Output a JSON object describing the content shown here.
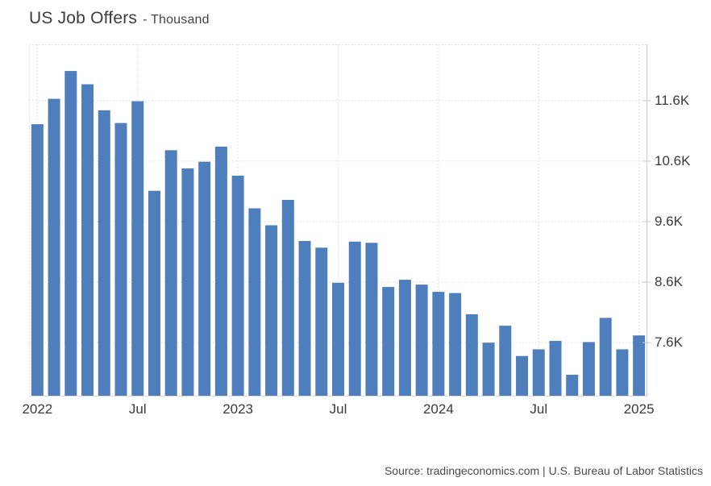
{
  "title": {
    "main": "US Job Offers",
    "unit": "- Thousand"
  },
  "source": "Source: tradingeconomics.com | U.S. Bureau of Labor Statistics",
  "colors": {
    "bar": "#4e7fbc",
    "grid": "#d9d9d9",
    "axis": "#c9c9c9",
    "baseline": "#dddddd",
    "tick_text": "#3a3a3a",
    "title_text": "#3c3c3c",
    "source_text": "#4a4a4a",
    "background": "#ffffff"
  },
  "chart_data": {
    "type": "bar",
    "title": "US Job Offers",
    "subtitle": "Thousand",
    "unit": "Thousand",
    "x": [
      "Jan 2022",
      "Feb 2022",
      "Mar 2022",
      "Apr 2022",
      "May 2022",
      "Jun 2022",
      "Jul 2022",
      "Aug 2022",
      "Sep 2022",
      "Oct 2022",
      "Nov 2022",
      "Dec 2022",
      "Jan 2023",
      "Feb 2023",
      "Mar 2023",
      "Apr 2023",
      "May 2023",
      "Jun 2023",
      "Jul 2023",
      "Aug 2023",
      "Sep 2023",
      "Oct 2023",
      "Nov 2023",
      "Dec 2023",
      "Jan 2024",
      "Feb 2024",
      "Mar 2024",
      "Apr 2024",
      "May 2024",
      "Jun 2024",
      "Jul 2024",
      "Aug 2024",
      "Sep 2024",
      "Oct 2024",
      "Nov 2024",
      "Dec 2024",
      "Jan 2025"
    ],
    "values": [
      11.21,
      11.63,
      12.09,
      11.87,
      11.44,
      11.23,
      11.59,
      10.11,
      10.78,
      10.48,
      10.59,
      10.84,
      10.36,
      9.82,
      9.54,
      9.96,
      9.28,
      9.17,
      8.59,
      9.27,
      9.25,
      8.52,
      8.64,
      8.56,
      8.44,
      8.42,
      8.07,
      7.6,
      7.88,
      7.38,
      7.49,
      7.63,
      7.07,
      7.61,
      8.01,
      7.49,
      7.72
    ],
    "values_unit": "K",
    "ylim": [
      6.71,
      12.53
    ],
    "ytick_values": [
      7.6,
      8.6,
      9.6,
      10.6,
      11.6
    ],
    "ytick_labels": [
      "7.6K",
      "8.6K",
      "9.6K",
      "10.6K",
      "11.6K"
    ],
    "xtick_positions": [
      0,
      6,
      12,
      18,
      24,
      30,
      36
    ],
    "xtick_labels": [
      "2022",
      "Jul",
      "2023",
      "Jul",
      "2024",
      "Jul",
      "2025"
    ],
    "grid": true,
    "grid_style": "dotted",
    "legend": false,
    "yaxis_side": "right",
    "xlabel": "",
    "ylabel": "Thousand"
  }
}
